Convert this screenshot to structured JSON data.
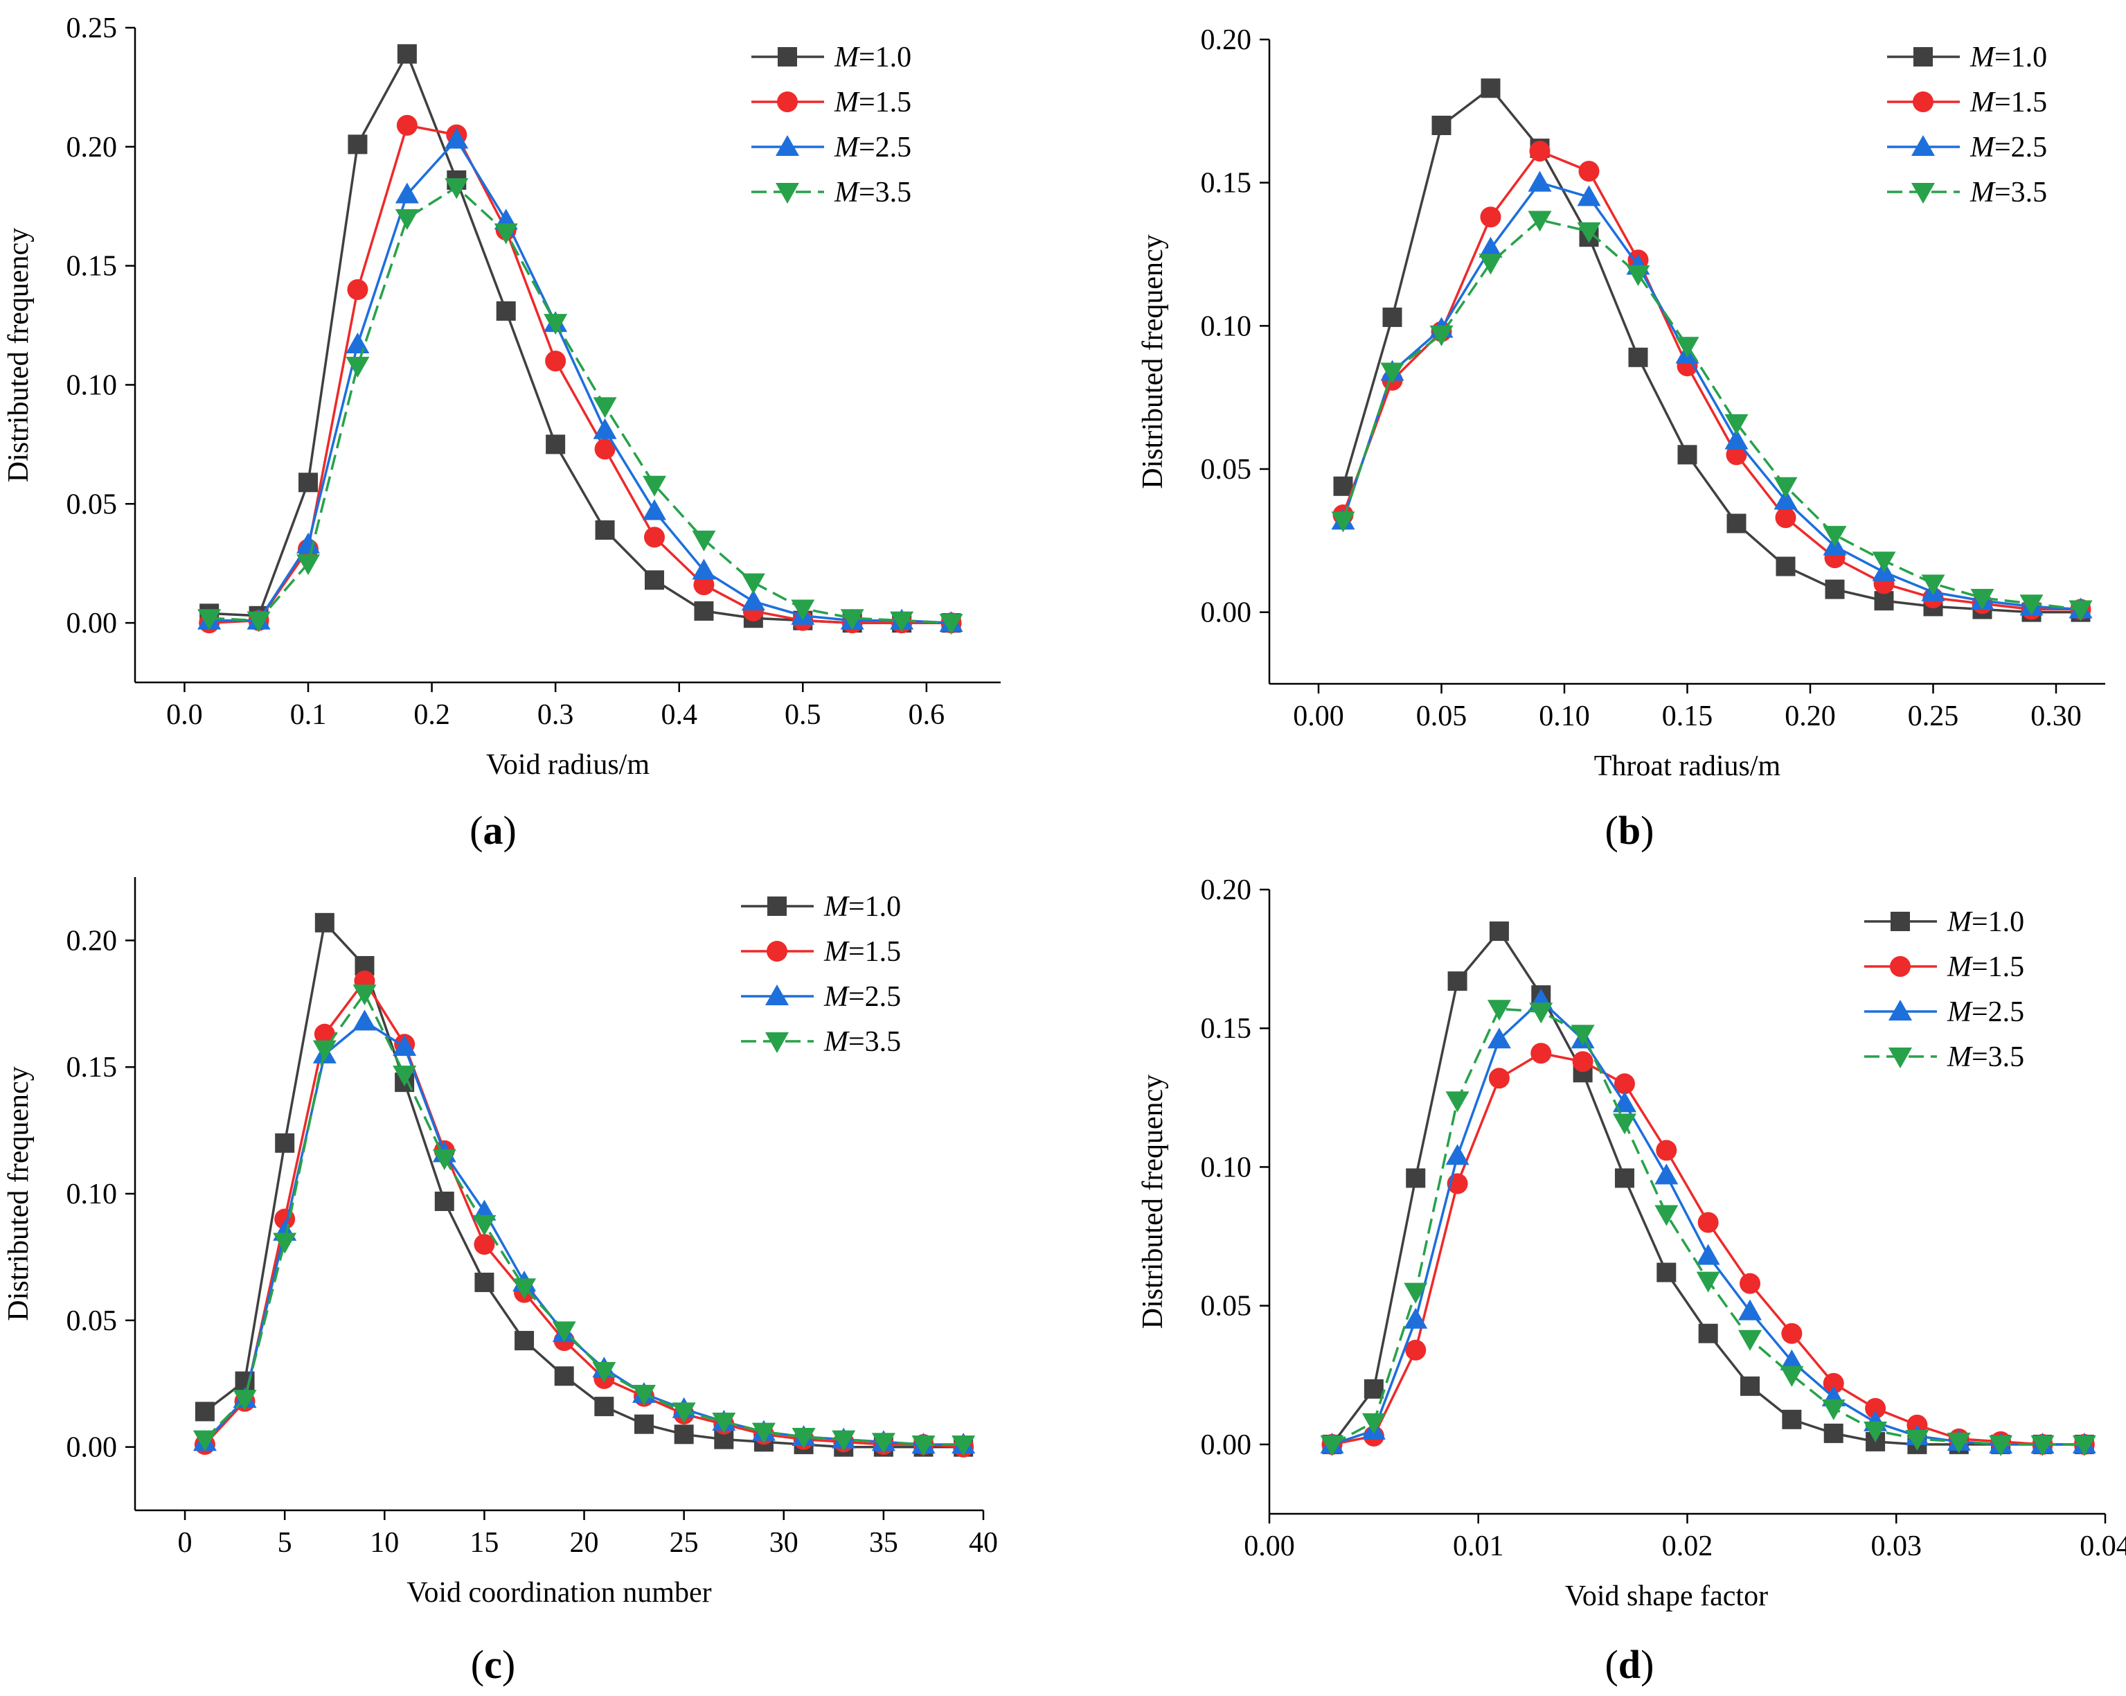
{
  "chart_data": [
    {
      "type": "line",
      "panel": "a",
      "xlabel": "Void radius/m",
      "ylabel": "Distributed frequency",
      "xlim": [
        -0.04,
        0.66
      ],
      "ylim": [
        -0.025,
        0.25
      ],
      "xticks": [
        0.0,
        0.1,
        0.2,
        0.3,
        0.4,
        0.5,
        0.6
      ],
      "xtick_labels": [
        "0.0",
        "0.1",
        "0.2",
        "0.3",
        "0.4",
        "0.5",
        "0.6"
      ],
      "yticks": [
        0.0,
        0.05,
        0.1,
        0.15,
        0.2,
        0.25
      ],
      "ytick_labels": [
        "0.00",
        "0.05",
        "0.10",
        "0.15",
        "0.20",
        "0.25"
      ],
      "legend_position": "top-right",
      "x": [
        0.02,
        0.06,
        0.1,
        0.14,
        0.18,
        0.22,
        0.26,
        0.3,
        0.34,
        0.38,
        0.42,
        0.46,
        0.5,
        0.54,
        0.58,
        0.62
      ],
      "series": [
        {
          "name": "M=1.0",
          "values": [
            0.004,
            0.003,
            0.059,
            0.201,
            0.239,
            0.186,
            0.131,
            0.075,
            0.039,
            0.018,
            0.005,
            0.002,
            0.001,
            0.0,
            0.0,
            0.0
          ]
        },
        {
          "name": "M=1.5",
          "values": [
            0.0,
            0.001,
            0.031,
            0.14,
            0.209,
            0.205,
            0.165,
            0.11,
            0.073,
            0.036,
            0.016,
            0.005,
            0.001,
            0.0,
            0.0,
            0.0
          ]
        },
        {
          "name": "M=2.5",
          "values": [
            0.001,
            0.001,
            0.033,
            0.117,
            0.18,
            0.203,
            0.169,
            0.126,
            0.081,
            0.047,
            0.022,
            0.009,
            0.003,
            0.001,
            0.001,
            0.0
          ]
        },
        {
          "name": "M=3.5",
          "values": [
            0.002,
            0.001,
            0.025,
            0.108,
            0.17,
            0.183,
            0.164,
            0.126,
            0.091,
            0.058,
            0.035,
            0.017,
            0.006,
            0.002,
            0.001,
            0.0
          ]
        }
      ]
    },
    {
      "type": "line",
      "panel": "b",
      "xlabel": "Throat radius/m",
      "ylabel": "Distributed frequency",
      "xlim": [
        -0.02,
        0.32
      ],
      "ylim": [
        -0.025,
        0.2
      ],
      "xticks": [
        0.0,
        0.05,
        0.1,
        0.15,
        0.2,
        0.25,
        0.3
      ],
      "xtick_labels": [
        "0.00",
        "0.05",
        "0.10",
        "0.15",
        "0.20",
        "0.25",
        "0.30"
      ],
      "yticks": [
        0.0,
        0.05,
        0.1,
        0.15,
        0.2
      ],
      "ytick_labels": [
        "0.00",
        "0.05",
        "0.10",
        "0.15",
        "0.20"
      ],
      "legend_position": "top-right",
      "x": [
        0.01,
        0.03,
        0.05,
        0.07,
        0.09,
        0.11,
        0.13,
        0.15,
        0.17,
        0.19,
        0.21,
        0.23,
        0.25,
        0.27,
        0.29,
        0.31
      ],
      "series": [
        {
          "name": "M=1.0",
          "values": [
            0.044,
            0.103,
            0.17,
            0.183,
            0.162,
            0.131,
            0.089,
            0.055,
            0.031,
            0.016,
            0.008,
            0.004,
            0.002,
            0.001,
            0.0,
            0.0
          ]
        },
        {
          "name": "M=1.5",
          "values": [
            0.034,
            0.081,
            0.098,
            0.138,
            0.161,
            0.154,
            0.123,
            0.086,
            0.055,
            0.033,
            0.019,
            0.01,
            0.005,
            0.003,
            0.001,
            0.001
          ]
        },
        {
          "name": "M=2.5",
          "values": [
            0.032,
            0.084,
            0.099,
            0.127,
            0.15,
            0.145,
            0.121,
            0.09,
            0.06,
            0.039,
            0.023,
            0.014,
            0.007,
            0.004,
            0.002,
            0.001
          ]
        },
        {
          "name": "M=3.5",
          "values": [
            0.032,
            0.084,
            0.097,
            0.122,
            0.137,
            0.133,
            0.118,
            0.093,
            0.066,
            0.044,
            0.027,
            0.018,
            0.01,
            0.005,
            0.003,
            0.001
          ]
        }
      ]
    },
    {
      "type": "line",
      "panel": "c",
      "xlabel": "Void coordination number",
      "ylabel": "Distributed frequency",
      "xlim": [
        -2.5,
        40
      ],
      "ylim": [
        -0.025,
        0.225
      ],
      "xticks": [
        0,
        5,
        10,
        15,
        20,
        25,
        30,
        35,
        40
      ],
      "xtick_labels": [
        "0",
        "5",
        "10",
        "15",
        "20",
        "25",
        "30",
        "35",
        "40"
      ],
      "yticks": [
        0.0,
        0.05,
        0.1,
        0.15,
        0.2
      ],
      "ytick_labels": [
        "0.00",
        "0.05",
        "0.10",
        "0.15",
        "0.20"
      ],
      "legend_position": "top-right",
      "x": [
        1,
        3,
        5,
        7,
        9,
        11,
        13,
        15,
        17,
        19,
        21,
        23,
        25,
        27,
        29,
        31,
        33,
        35,
        37,
        39
      ],
      "series": [
        {
          "name": "M=1.0",
          "values": [
            0.014,
            0.026,
            0.12,
            0.207,
            0.19,
            0.144,
            0.097,
            0.065,
            0.042,
            0.028,
            0.016,
            0.009,
            0.005,
            0.003,
            0.002,
            0.001,
            0.0,
            0.0,
            0.0,
            0.0
          ]
        },
        {
          "name": "M=1.5",
          "values": [
            0.001,
            0.018,
            0.09,
            0.163,
            0.184,
            0.159,
            0.117,
            0.08,
            0.061,
            0.042,
            0.027,
            0.02,
            0.013,
            0.009,
            0.005,
            0.003,
            0.002,
            0.001,
            0.001,
            0.0
          ]
        },
        {
          "name": "M=2.5",
          "values": [
            0.002,
            0.019,
            0.085,
            0.155,
            0.168,
            0.158,
            0.116,
            0.093,
            0.065,
            0.045,
            0.031,
            0.021,
            0.015,
            0.01,
            0.006,
            0.004,
            0.003,
            0.002,
            0.001,
            0.001
          ]
        },
        {
          "name": "M=3.5",
          "values": [
            0.003,
            0.019,
            0.081,
            0.157,
            0.179,
            0.147,
            0.114,
            0.088,
            0.063,
            0.046,
            0.03,
            0.021,
            0.014,
            0.01,
            0.006,
            0.004,
            0.003,
            0.002,
            0.001,
            0.001
          ]
        }
      ]
    },
    {
      "type": "line",
      "panel": "d",
      "xlabel": "Void shape factor",
      "ylabel": "Distributed frequency",
      "xlim": [
        0.0,
        0.04
      ],
      "ylim": [
        -0.025,
        0.2
      ],
      "xticks": [
        0.0,
        0.01,
        0.02,
        0.03,
        0.04
      ],
      "xtick_labels": [
        "0.00",
        "0.01",
        "0.02",
        "0.03",
        "0.04"
      ],
      "yticks": [
        0.0,
        0.05,
        0.1,
        0.15,
        0.2
      ],
      "ytick_labels": [
        "0.00",
        "0.05",
        "0.10",
        "0.15",
        "0.20"
      ],
      "legend_position": "top-right",
      "x": [
        0.003,
        0.005,
        0.007,
        0.009,
        0.011,
        0.013,
        0.015,
        0.017,
        0.019,
        0.021,
        0.023,
        0.025,
        0.027,
        0.029,
        0.031,
        0.033,
        0.035,
        0.037,
        0.039
      ],
      "series": [
        {
          "name": "M=1.0",
          "values": [
            0.0,
            0.02,
            0.096,
            0.167,
            0.185,
            0.162,
            0.134,
            0.096,
            0.062,
            0.04,
            0.021,
            0.009,
            0.004,
            0.001,
            0.0,
            0.0,
            0.0,
            0.0,
            0.0
          ]
        },
        {
          "name": "M=1.5",
          "values": [
            0.0,
            0.003,
            0.034,
            0.094,
            0.132,
            0.141,
            0.138,
            0.13,
            0.106,
            0.08,
            0.058,
            0.04,
            0.022,
            0.013,
            0.007,
            0.002,
            0.001,
            0.0,
            0.0
          ]
        },
        {
          "name": "M=2.5",
          "values": [
            0.0,
            0.005,
            0.045,
            0.104,
            0.146,
            0.16,
            0.146,
            0.123,
            0.097,
            0.068,
            0.048,
            0.03,
            0.017,
            0.008,
            0.003,
            0.001,
            0.0,
            0.0,
            0.0
          ]
        },
        {
          "name": "M=3.5",
          "values": [
            0.0,
            0.008,
            0.055,
            0.124,
            0.157,
            0.156,
            0.148,
            0.116,
            0.083,
            0.059,
            0.038,
            0.025,
            0.013,
            0.005,
            0.002,
            0.001,
            0.0,
            0.0,
            0.0
          ]
        }
      ]
    }
  ],
  "panel_labels": [
    {
      "open": "(",
      "letter": "a",
      "close": ")"
    },
    {
      "open": "(",
      "letter": "b",
      "close": ")"
    },
    {
      "open": "(",
      "letter": "c",
      "close": ")"
    },
    {
      "open": "(",
      "letter": "d",
      "close": ")"
    }
  ],
  "legend": {
    "symbol": "M",
    "entries": [
      "=1.0",
      "=1.5",
      "=2.5",
      "=3.5"
    ]
  },
  "series_style": [
    {
      "color": "#404040",
      "marker": "square",
      "dash": "solid"
    },
    {
      "color": "#ee2a2a",
      "marker": "circle",
      "dash": "solid"
    },
    {
      "color": "#1d6fdc",
      "marker": "triangle-up",
      "dash": "solid"
    },
    {
      "color": "#27a24a",
      "marker": "triangle-down",
      "dash": "dashed"
    }
  ]
}
